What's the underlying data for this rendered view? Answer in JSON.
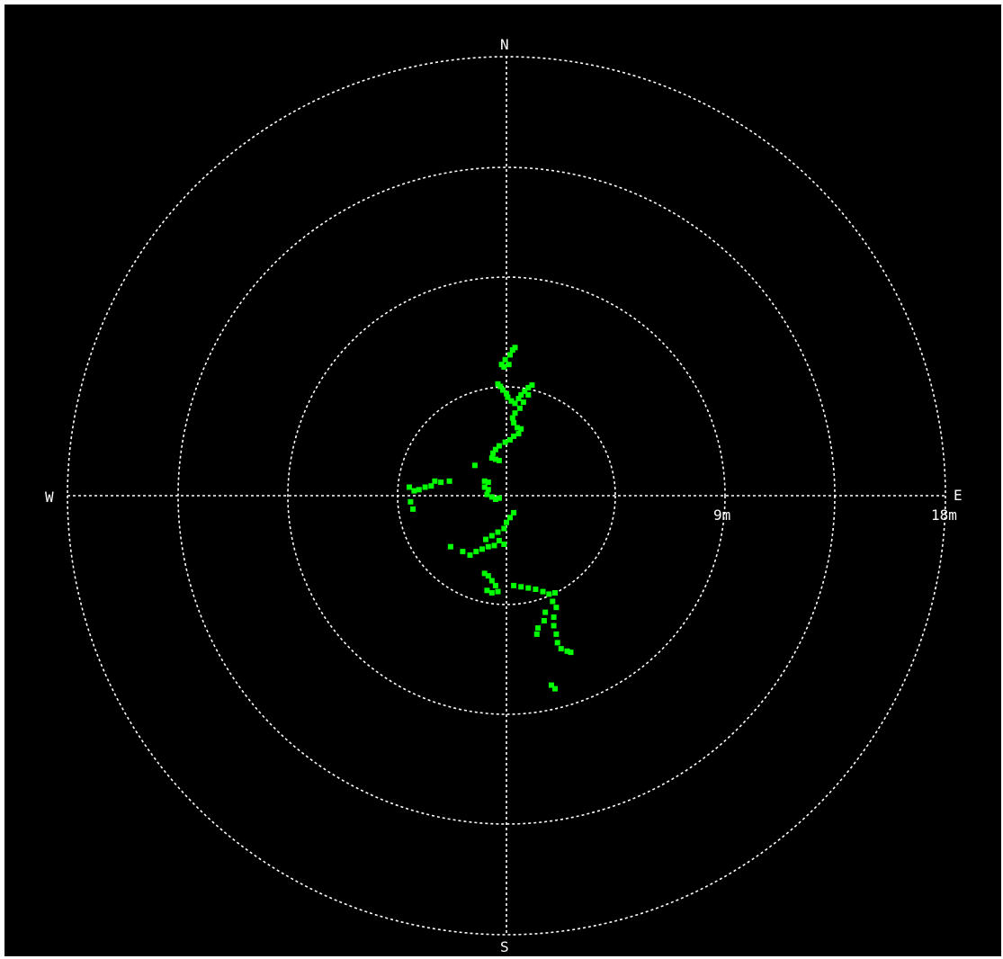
{
  "radar": {
    "compass": {
      "north": "N",
      "south": "S",
      "east": "E",
      "west": "W"
    },
    "range_labels": [
      "9m",
      "18m"
    ],
    "colors": {
      "background": "#000000",
      "grid": "#ffffff",
      "points": "#00ff00"
    },
    "points": [
      [
        0.35,
        6.1
      ],
      [
        0.25,
        6.0
      ],
      [
        0.15,
        5.8
      ],
      [
        -0.05,
        5.6
      ],
      [
        -0.2,
        5.4
      ],
      [
        -0.1,
        5.3
      ],
      [
        0.1,
        5.4
      ],
      [
        -0.35,
        4.6
      ],
      [
        -0.25,
        4.5
      ],
      [
        -0.15,
        4.35
      ],
      [
        0.0,
        4.2
      ],
      [
        0.05,
        4.05
      ],
      [
        0.2,
        3.9
      ],
      [
        0.35,
        3.8
      ],
      [
        0.5,
        4.0
      ],
      [
        0.6,
        4.15
      ],
      [
        0.75,
        4.3
      ],
      [
        0.9,
        4.45
      ],
      [
        1.05,
        4.55
      ],
      [
        0.9,
        4.15
      ],
      [
        0.7,
        3.85
      ],
      [
        0.55,
        3.6
      ],
      [
        0.35,
        3.4
      ],
      [
        0.25,
        3.2
      ],
      [
        0.3,
        3.0
      ],
      [
        0.45,
        2.8
      ],
      [
        0.6,
        2.75
      ],
      [
        0.5,
        2.55
      ],
      [
        0.3,
        2.45
      ],
      [
        0.15,
        2.3
      ],
      [
        -0.05,
        2.2
      ],
      [
        -0.3,
        2.05
      ],
      [
        -0.45,
        1.9
      ],
      [
        -0.55,
        1.75
      ],
      [
        -0.6,
        1.55
      ],
      [
        -0.45,
        1.5
      ],
      [
        -0.3,
        1.45
      ],
      [
        -1.3,
        1.25
      ],
      [
        -0.9,
        0.6
      ],
      [
        -0.75,
        0.55
      ],
      [
        -0.9,
        0.35
      ],
      [
        -0.75,
        0.25
      ],
      [
        -0.8,
        0.05
      ],
      [
        -0.6,
        -0.05
      ],
      [
        -0.45,
        -0.15
      ],
      [
        -0.3,
        -0.1
      ],
      [
        -4.0,
        0.35
      ],
      [
        -3.8,
        0.2
      ],
      [
        -3.6,
        0.25
      ],
      [
        -3.35,
        0.35
      ],
      [
        -3.1,
        0.4
      ],
      [
        -2.95,
        0.6
      ],
      [
        -2.7,
        0.55
      ],
      [
        -2.35,
        0.6
      ],
      [
        -3.95,
        -0.25
      ],
      [
        -3.85,
        -0.55
      ],
      [
        0.3,
        -0.7
      ],
      [
        0.15,
        -0.9
      ],
      [
        0.0,
        -1.1
      ],
      [
        -0.1,
        -1.35
      ],
      [
        -0.35,
        -1.5
      ],
      [
        -0.6,
        -1.65
      ],
      [
        -0.85,
        -1.8
      ],
      [
        -0.3,
        -1.85
      ],
      [
        -0.1,
        -2.0
      ],
      [
        -0.5,
        -2.05
      ],
      [
        -0.75,
        -2.1
      ],
      [
        -1.0,
        -2.2
      ],
      [
        -1.25,
        -2.3
      ],
      [
        -1.5,
        -2.45
      ],
      [
        -1.8,
        -2.3
      ],
      [
        -2.3,
        -2.1
      ],
      [
        -0.9,
        -3.2
      ],
      [
        -0.75,
        -3.3
      ],
      [
        -0.6,
        -3.5
      ],
      [
        -0.45,
        -3.7
      ],
      [
        -0.8,
        -3.9
      ],
      [
        -0.6,
        -4.0
      ],
      [
        -0.35,
        -3.95
      ],
      [
        0.3,
        -3.7
      ],
      [
        0.6,
        -3.75
      ],
      [
        0.9,
        -3.8
      ],
      [
        1.2,
        -3.85
      ],
      [
        1.5,
        -3.95
      ],
      [
        1.75,
        -4.05
      ],
      [
        2.0,
        -4.0
      ],
      [
        1.9,
        -4.35
      ],
      [
        2.05,
        -4.6
      ],
      [
        1.6,
        -4.8
      ],
      [
        1.55,
        -5.15
      ],
      [
        1.95,
        -5.0
      ],
      [
        1.95,
        -5.35
      ],
      [
        2.05,
        -5.7
      ],
      [
        2.1,
        -6.05
      ],
      [
        2.25,
        -6.3
      ],
      [
        2.5,
        -6.4
      ],
      [
        2.65,
        -6.45
      ],
      [
        1.25,
        -5.7
      ],
      [
        1.3,
        -5.45
      ],
      [
        1.85,
        -7.8
      ],
      [
        2.0,
        -7.95
      ]
    ]
  }
}
